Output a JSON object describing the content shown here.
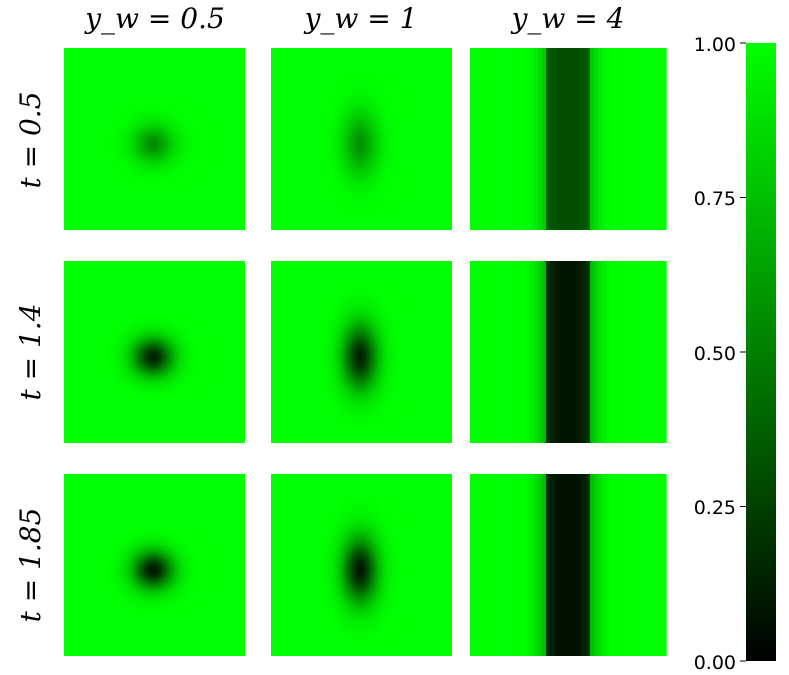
{
  "chart_data": {
    "type": "heatmap",
    "layout": "3x3 grid of small-multiple heatmaps with shared colorbar",
    "column_headers": [
      "y_w = 0.5",
      "y_w = 1",
      "y_w = 4"
    ],
    "row_headers": [
      "t = 0.5",
      "t = 1.4",
      "t = 1.85"
    ],
    "colormap": {
      "low": "#000000",
      "high": "#00ff00"
    },
    "colorbar": {
      "range": [
        0,
        1
      ],
      "ticks": [
        1.0,
        0.75,
        0.5,
        0.25,
        0.0
      ],
      "tick_labels": [
        "1.00",
        "0.75",
        "0.50",
        "0.25",
        "0.00"
      ]
    },
    "panels": [
      {
        "row": 0,
        "col": 0,
        "pattern": "round spot",
        "min_value": 0.55
      },
      {
        "row": 0,
        "col": 1,
        "pattern": "elongated vertical spot",
        "min_value": 0.58
      },
      {
        "row": 0,
        "col": 2,
        "pattern": "vertical band",
        "min_value": 0.3
      },
      {
        "row": 1,
        "col": 0,
        "pattern": "round spot",
        "min_value": 0.12
      },
      {
        "row": 1,
        "col": 1,
        "pattern": "elongated vertical spot",
        "min_value": 0.12
      },
      {
        "row": 1,
        "col": 2,
        "pattern": "vertical band",
        "min_value": 0.08
      },
      {
        "row": 2,
        "col": 0,
        "pattern": "round spot",
        "min_value": 0.08
      },
      {
        "row": 2,
        "col": 1,
        "pattern": "elongated vertical spot",
        "min_value": 0.08
      },
      {
        "row": 2,
        "col": 2,
        "pattern": "vertical band",
        "min_value": 0.06
      }
    ]
  }
}
